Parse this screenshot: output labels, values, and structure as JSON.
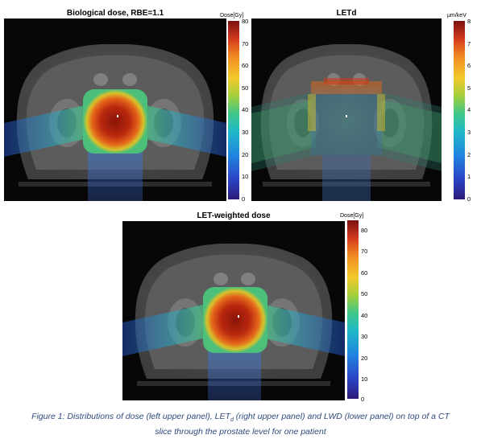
{
  "panels": {
    "bio": {
      "title": "Biological dose, RBE=1.1",
      "unit": "Dose[Gy]",
      "ticks": [
        "80",
        "70",
        "60",
        "50",
        "40",
        "30",
        "20",
        "10",
        "0"
      ]
    },
    "letd": {
      "title": "LETd",
      "unit": "μm/keV",
      "ticks": [
        "8",
        "7",
        "6",
        "5",
        "4",
        "3",
        "2",
        "1",
        "0"
      ]
    },
    "lwd": {
      "title": "LET-weighted dose",
      "unit": "Dose[Gy]",
      "ticks": [
        "80",
        "70",
        "60",
        "50",
        "40",
        "30",
        "20",
        "10",
        "0"
      ]
    }
  },
  "caption": {
    "line1_pre": "Figure 1: Distributions of dose (left upper panel), LET",
    "line1_sub": "d",
    "line1_post": " (right upper panel) and LWD (lower panel) on top of a CT",
    "line2": "slice through the prostate level for one patient"
  }
}
